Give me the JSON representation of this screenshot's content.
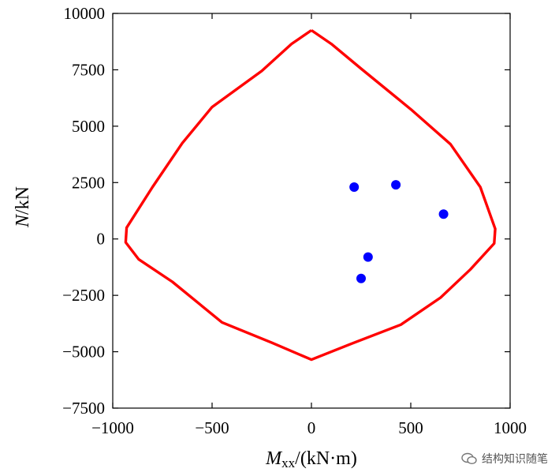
{
  "chart_data": {
    "type": "scatter",
    "xlabel": {
      "main": "M",
      "sub": "xx",
      "rest": "/(kN·m)"
    },
    "ylabel": {
      "main": "N",
      "rest": "/kN"
    },
    "xlim": [
      -1000,
      1000
    ],
    "ylim": [
      -7500,
      10000
    ],
    "xticks": [
      -1000,
      -500,
      0,
      500,
      1000
    ],
    "xtick_labels": [
      "−1000",
      "−500",
      "0",
      "500",
      "1000"
    ],
    "yticks": [
      10000,
      7500,
      5000,
      2500,
      0,
      -2500,
      -5000,
      -7500
    ],
    "ytick_labels": [
      "10000",
      "7500",
      "5000",
      "2500",
      "0",
      "−2500",
      "−5000",
      "−7500"
    ],
    "series": [
      {
        "name": "interaction-curve",
        "kind": "line",
        "color": "#ff0000",
        "points": [
          [
            0,
            9250
          ],
          [
            -100,
            8650
          ],
          [
            -250,
            7450
          ],
          [
            -500,
            5850
          ],
          [
            -650,
            4250
          ],
          [
            -800,
            2300
          ],
          [
            -930,
            500
          ],
          [
            -935,
            -150
          ],
          [
            -870,
            -900
          ],
          [
            -700,
            -1900
          ],
          [
            -450,
            -3700
          ],
          [
            -200,
            -4600
          ],
          [
            0,
            -5350
          ],
          [
            200,
            -4650
          ],
          [
            450,
            -3800
          ],
          [
            650,
            -2600
          ],
          [
            800,
            -1350
          ],
          [
            920,
            -200
          ],
          [
            925,
            450
          ],
          [
            850,
            2300
          ],
          [
            700,
            4200
          ],
          [
            500,
            5750
          ],
          [
            250,
            7550
          ],
          [
            100,
            8650
          ],
          [
            0,
            9250
          ]
        ]
      },
      {
        "name": "load-points",
        "kind": "scatter",
        "color": "#0000ff",
        "points": [
          [
            215,
            2300
          ],
          [
            425,
            2400
          ],
          [
            665,
            1100
          ],
          [
            285,
            -800
          ],
          [
            250,
            -1750
          ]
        ]
      }
    ]
  },
  "watermark": {
    "text": "结构知识随笔"
  }
}
